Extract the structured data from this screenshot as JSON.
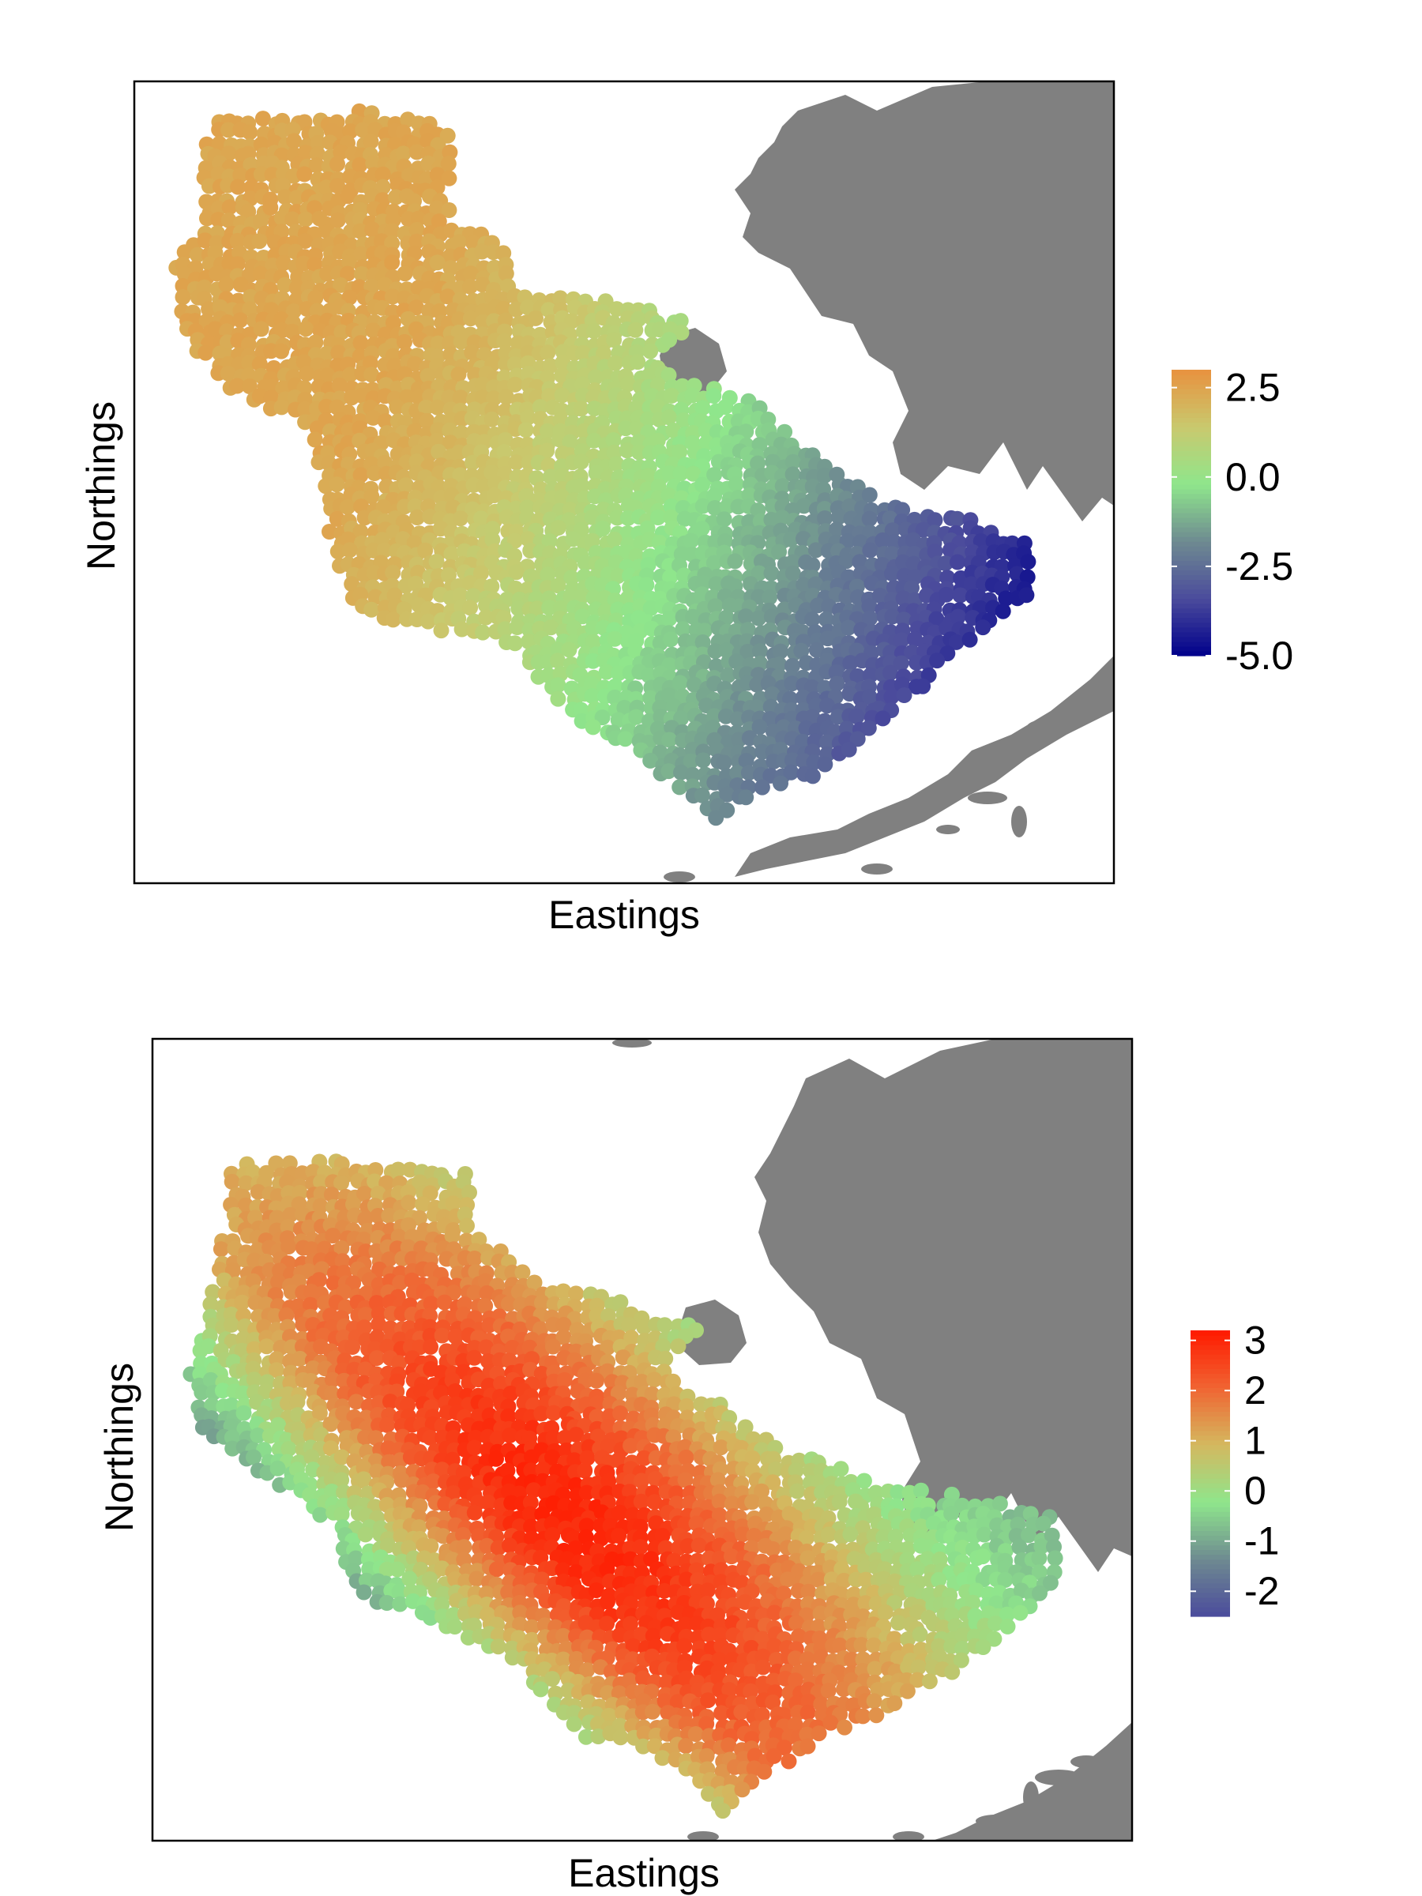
{
  "colors": {
    "land": "#808080",
    "ocean_background": "#ffffff",
    "frame": "#000000"
  },
  "panels": [
    {
      "xlabel": "Eastings",
      "ylabel": "Northings",
      "legend": {
        "ticks": [
          "2.5",
          "0.0",
          "-2.5",
          "-5.0"
        ],
        "values": [
          2.5,
          0.0,
          -2.5,
          -5.0
        ],
        "range": [
          -5.0,
          3.0
        ],
        "gradient_low_to_high": [
          "#00008b",
          "#4b4b9c",
          "#6e8a91",
          "#8fe68c",
          "#c9c96e",
          "#e8923f"
        ]
      }
    },
    {
      "xlabel": "Eastings",
      "ylabel": "Northings",
      "legend": {
        "ticks": [
          "3",
          "2",
          "1",
          "0",
          "-1",
          "-2"
        ],
        "values": [
          3,
          2,
          1,
          0,
          -1,
          -2
        ],
        "range": [
          -2.5,
          3.2
        ],
        "gradient_low_to_high": [
          "#4b4b9c",
          "#6e8a91",
          "#8fe68c",
          "#d4b85f",
          "#f06432",
          "#ff1a00"
        ]
      }
    }
  ],
  "chart_data": [
    {
      "type": "heatmap",
      "title": "",
      "xlabel": "Eastings",
      "ylabel": "Northings",
      "legend_position": "right",
      "value_range": [
        -5.0,
        3.0
      ],
      "legend_ticks": [
        2.5,
        0.0,
        -2.5,
        -5.0
      ],
      "spatial_pattern": "high values (~2.5) in the northwest decreasing to about -5.0 in the southeast"
    },
    {
      "type": "heatmap",
      "title": "",
      "xlabel": "Eastings",
      "ylabel": "Northings",
      "legend_position": "right",
      "value_range": [
        -2.5,
        3.2
      ],
      "legend_ticks": [
        3,
        2,
        1,
        0,
        -1,
        -2
      ],
      "spatial_pattern": "highest values (~3) along a central northwest-southeast band, near 0 in the west and northeast, about -2 along the southern margin"
    }
  ]
}
